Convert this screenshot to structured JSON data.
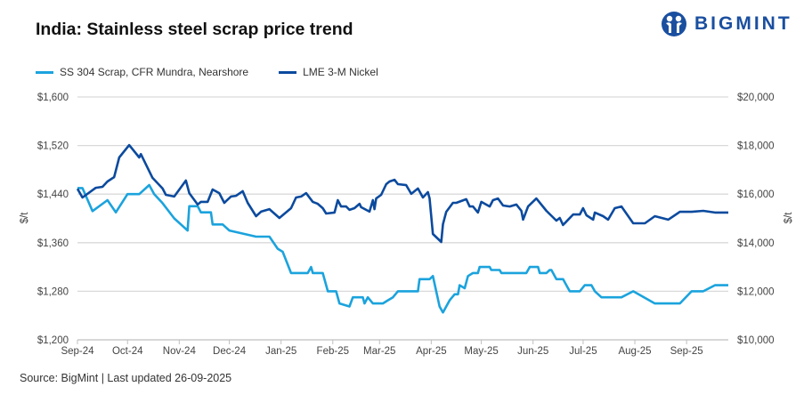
{
  "title": "India: Stainless steel scrap price trend",
  "logo": {
    "text": "BIGMINT",
    "color": "#1a4fa0"
  },
  "source": "Source: BigMint | Last updated 26-09-2025",
  "chart_data": {
    "type": "line",
    "title": "India: Stainless steel scrap price trend",
    "legend_position": "top-left",
    "grid": true,
    "x_range": [
      "2024-09-01",
      "2025-09-26"
    ],
    "x_tick_labels": [
      "Sep-24",
      "Oct-24",
      "Nov-24",
      "Dec-24",
      "Jan-25",
      "Feb-25",
      "Mar-25",
      "Apr-25",
      "May-25",
      "Jun-25",
      "Jul-25",
      "Aug-25",
      "Sep-25"
    ],
    "y_left": {
      "label": "$/t",
      "range": [
        1200,
        1600
      ],
      "ticks": [
        "$1,200",
        "$1,280",
        "$1,360",
        "$1,440",
        "$1,520",
        "$1,600"
      ]
    },
    "y_right": {
      "label": "$/t",
      "range": [
        10000,
        20000
      ],
      "ticks": [
        "$10,000",
        "$12,000",
        "$14,000",
        "$16,000",
        "$18,000",
        "$20,000"
      ]
    },
    "series": [
      {
        "name": "SS 304 Scrap, CFR Mundra, Nearshore",
        "axis": "left",
        "color": "#1ba3dd",
        "points": [
          [
            "2024-09-01",
            1450
          ],
          [
            "2024-09-04",
            1450
          ],
          [
            "2024-09-10",
            1412
          ],
          [
            "2024-09-19",
            1430
          ],
          [
            "2024-09-24",
            1410
          ],
          [
            "2024-10-01",
            1440
          ],
          [
            "2024-10-08",
            1440
          ],
          [
            "2024-10-14",
            1455
          ],
          [
            "2024-10-17",
            1440
          ],
          [
            "2024-10-22",
            1425
          ],
          [
            "2024-10-29",
            1400
          ],
          [
            "2024-11-06",
            1380
          ],
          [
            "2024-11-07",
            1420
          ],
          [
            "2024-11-12",
            1420
          ],
          [
            "2024-11-14",
            1410
          ],
          [
            "2024-11-20",
            1410
          ],
          [
            "2024-11-21",
            1390
          ],
          [
            "2024-11-27",
            1390
          ],
          [
            "2024-12-01",
            1380
          ],
          [
            "2024-12-17",
            1370
          ],
          [
            "2024-12-25",
            1370
          ],
          [
            "2024-12-30",
            1350
          ],
          [
            "2025-01-02",
            1345
          ],
          [
            "2025-01-07",
            1310
          ],
          [
            "2025-01-17",
            1310
          ],
          [
            "2025-01-19",
            1320
          ],
          [
            "2025-01-20",
            1310
          ],
          [
            "2025-01-26",
            1310
          ],
          [
            "2025-01-29",
            1280
          ],
          [
            "2025-02-03",
            1280
          ],
          [
            "2025-02-05",
            1260
          ],
          [
            "2025-02-11",
            1255
          ],
          [
            "2025-02-13",
            1270
          ],
          [
            "2025-02-19",
            1270
          ],
          [
            "2025-02-20",
            1260
          ],
          [
            "2025-02-22",
            1270
          ],
          [
            "2025-02-25",
            1260
          ],
          [
            "2025-03-03",
            1260
          ],
          [
            "2025-03-06",
            1265
          ],
          [
            "2025-03-09",
            1270
          ],
          [
            "2025-03-12",
            1280
          ],
          [
            "2025-03-24",
            1280
          ],
          [
            "2025-03-25",
            1300
          ],
          [
            "2025-03-31",
            1300
          ],
          [
            "2025-04-02",
            1305
          ],
          [
            "2025-04-06",
            1255
          ],
          [
            "2025-04-08",
            1245
          ],
          [
            "2025-04-12",
            1265
          ],
          [
            "2025-04-15",
            1275
          ],
          [
            "2025-04-17",
            1275
          ],
          [
            "2025-04-18",
            1290
          ],
          [
            "2025-04-21",
            1285
          ],
          [
            "2025-04-23",
            1305
          ],
          [
            "2025-04-26",
            1310
          ],
          [
            "2025-04-29",
            1310
          ],
          [
            "2025-04-30",
            1320
          ],
          [
            "2025-05-06",
            1320
          ],
          [
            "2025-05-07",
            1315
          ],
          [
            "2025-05-12",
            1315
          ],
          [
            "2025-05-13",
            1310
          ],
          [
            "2025-05-28",
            1310
          ],
          [
            "2025-05-30",
            1320
          ],
          [
            "2025-06-04",
            1320
          ],
          [
            "2025-06-05",
            1310
          ],
          [
            "2025-06-09",
            1310
          ],
          [
            "2025-06-11",
            1315
          ],
          [
            "2025-06-12",
            1315
          ],
          [
            "2025-06-15",
            1300
          ],
          [
            "2025-06-19",
            1300
          ],
          [
            "2025-06-23",
            1280
          ],
          [
            "2025-06-29",
            1280
          ],
          [
            "2025-07-02",
            1290
          ],
          [
            "2025-07-06",
            1290
          ],
          [
            "2025-07-08",
            1280
          ],
          [
            "2025-07-12",
            1270
          ],
          [
            "2025-07-24",
            1270
          ],
          [
            "2025-07-31",
            1280
          ],
          [
            "2025-08-13",
            1260
          ],
          [
            "2025-08-28",
            1260
          ],
          [
            "2025-09-04",
            1280
          ],
          [
            "2025-09-11",
            1280
          ],
          [
            "2025-09-18",
            1290
          ],
          [
            "2025-09-26",
            1290
          ]
        ]
      },
      {
        "name": "LME 3-M Nickel",
        "axis": "right",
        "color": "#0b4a9e",
        "points": [
          [
            "2024-09-01",
            16220
          ],
          [
            "2024-09-04",
            15860
          ],
          [
            "2024-09-12",
            16260
          ],
          [
            "2024-09-16",
            16300
          ],
          [
            "2024-09-19",
            16520
          ],
          [
            "2024-09-23",
            16700
          ],
          [
            "2024-09-26",
            17510
          ],
          [
            "2024-10-02",
            18020
          ],
          [
            "2024-10-08",
            17510
          ],
          [
            "2024-10-09",
            17650
          ],
          [
            "2024-10-16",
            16670
          ],
          [
            "2024-10-22",
            16230
          ],
          [
            "2024-10-24",
            15970
          ],
          [
            "2024-10-29",
            15900
          ],
          [
            "2024-11-05",
            16560
          ],
          [
            "2024-11-07",
            16040
          ],
          [
            "2024-11-12",
            15570
          ],
          [
            "2024-11-14",
            15680
          ],
          [
            "2024-11-18",
            15680
          ],
          [
            "2024-11-21",
            16190
          ],
          [
            "2024-11-25",
            16040
          ],
          [
            "2024-11-28",
            15640
          ],
          [
            "2024-12-02",
            15900
          ],
          [
            "2024-12-05",
            15930
          ],
          [
            "2024-12-09",
            16120
          ],
          [
            "2024-12-12",
            15640
          ],
          [
            "2024-12-17",
            15090
          ],
          [
            "2024-12-20",
            15280
          ],
          [
            "2024-12-25",
            15380
          ],
          [
            "2024-12-31",
            15020
          ],
          [
            "2025-01-07",
            15420
          ],
          [
            "2025-01-10",
            15860
          ],
          [
            "2025-01-13",
            15900
          ],
          [
            "2025-01-16",
            16040
          ],
          [
            "2025-01-20",
            15680
          ],
          [
            "2025-01-23",
            15600
          ],
          [
            "2025-01-26",
            15420
          ],
          [
            "2025-01-28",
            15200
          ],
          [
            "2025-02-02",
            15240
          ],
          [
            "2025-02-04",
            15750
          ],
          [
            "2025-02-06",
            15490
          ],
          [
            "2025-02-09",
            15490
          ],
          [
            "2025-02-11",
            15350
          ],
          [
            "2025-02-14",
            15420
          ],
          [
            "2025-02-17",
            15600
          ],
          [
            "2025-02-18",
            15460
          ],
          [
            "2025-02-23",
            15280
          ],
          [
            "2025-02-25",
            15750
          ],
          [
            "2025-02-26",
            15380
          ],
          [
            "2025-02-27",
            15820
          ],
          [
            "2025-03-02",
            15970
          ],
          [
            "2025-03-05",
            16410
          ],
          [
            "2025-03-07",
            16520
          ],
          [
            "2025-03-10",
            16590
          ],
          [
            "2025-03-12",
            16410
          ],
          [
            "2025-03-17",
            16370
          ],
          [
            "2025-03-20",
            16010
          ],
          [
            "2025-03-24",
            16230
          ],
          [
            "2025-03-27",
            15860
          ],
          [
            "2025-03-30",
            16080
          ],
          [
            "2025-03-31",
            15820
          ],
          [
            "2025-04-02",
            14360
          ],
          [
            "2025-04-07",
            14030
          ],
          [
            "2025-04-08",
            14760
          ],
          [
            "2025-04-10",
            15270
          ],
          [
            "2025-04-14",
            15640
          ],
          [
            "2025-04-16",
            15640
          ],
          [
            "2025-04-22",
            15790
          ],
          [
            "2025-04-24",
            15490
          ],
          [
            "2025-04-26",
            15490
          ],
          [
            "2025-04-29",
            15240
          ],
          [
            "2025-05-01",
            15680
          ],
          [
            "2025-05-06",
            15490
          ],
          [
            "2025-05-08",
            15750
          ],
          [
            "2025-05-11",
            15820
          ],
          [
            "2025-05-14",
            15530
          ],
          [
            "2025-05-18",
            15490
          ],
          [
            "2025-05-22",
            15570
          ],
          [
            "2025-05-25",
            15310
          ],
          [
            "2025-05-26",
            14950
          ],
          [
            "2025-05-29",
            15490
          ],
          [
            "2025-06-03",
            15820
          ],
          [
            "2025-06-09",
            15310
          ],
          [
            "2025-06-15",
            14910
          ],
          [
            "2025-06-17",
            15020
          ],
          [
            "2025-06-19",
            14730
          ],
          [
            "2025-06-25",
            15160
          ],
          [
            "2025-06-29",
            15160
          ],
          [
            "2025-07-01",
            15420
          ],
          [
            "2025-07-03",
            15130
          ],
          [
            "2025-07-07",
            14950
          ],
          [
            "2025-07-08",
            15240
          ],
          [
            "2025-07-13",
            15090
          ],
          [
            "2025-07-16",
            14950
          ],
          [
            "2025-07-20",
            15420
          ],
          [
            "2025-07-24",
            15490
          ],
          [
            "2025-07-31",
            14800
          ],
          [
            "2025-08-07",
            14800
          ],
          [
            "2025-08-13",
            15090
          ],
          [
            "2025-08-21",
            14950
          ],
          [
            "2025-08-28",
            15270
          ],
          [
            "2025-09-04",
            15270
          ],
          [
            "2025-09-11",
            15310
          ],
          [
            "2025-09-18",
            15240
          ],
          [
            "2025-09-26",
            15240
          ]
        ]
      }
    ]
  }
}
